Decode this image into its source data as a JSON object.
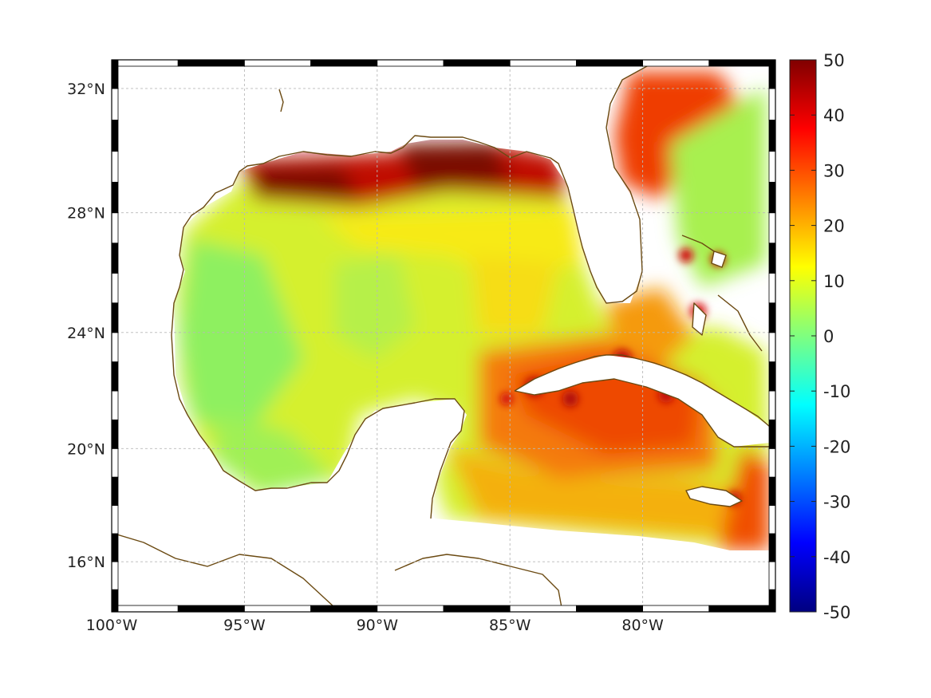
{
  "map": {
    "projection": "mercator",
    "lon_range": [
      -100,
      -75
    ],
    "lat_range": [
      14.2,
      32.9
    ],
    "frame_style": "alternating-black-white"
  },
  "axes": {
    "lon_ticks": [
      {
        "value": -100,
        "label": "100°W"
      },
      {
        "value": -95,
        "label": "95°W"
      },
      {
        "value": -90,
        "label": "90°W"
      },
      {
        "value": -85,
        "label": "85°W"
      },
      {
        "value": -80,
        "label": "80°W"
      }
    ],
    "lat_ticks": [
      {
        "value": 32,
        "label": "32°N"
      },
      {
        "value": 28,
        "label": "28°N"
      },
      {
        "value": 24,
        "label": "24°N"
      },
      {
        "value": 20,
        "label": "20°N"
      },
      {
        "value": 16,
        "label": "16°N"
      }
    ],
    "grid": true
  },
  "colorbar": {
    "colormap": "jet",
    "min": -50,
    "max": 50,
    "ticks": [
      {
        "value": 50,
        "label": "50"
      },
      {
        "value": 40,
        "label": "40"
      },
      {
        "value": 30,
        "label": "30"
      },
      {
        "value": 20,
        "label": "20"
      },
      {
        "value": 10,
        "label": "10"
      },
      {
        "value": 0,
        "label": "0"
      },
      {
        "value": -10,
        "label": "-10"
      },
      {
        "value": -20,
        "label": "-20"
      },
      {
        "value": -30,
        "label": "-30"
      },
      {
        "value": -40,
        "label": "-40"
      },
      {
        "value": -50,
        "label": "-50"
      }
    ]
  },
  "colors": {
    "coastline": "#6b4a12",
    "land": "#ffffff",
    "background_field": "#c8f236"
  }
}
